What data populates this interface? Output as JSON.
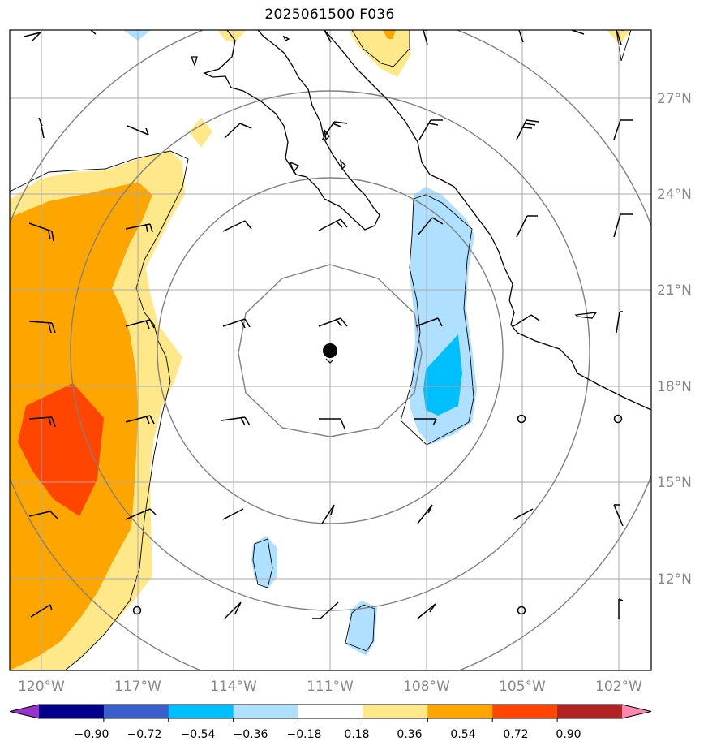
{
  "title": "2025061500 F036",
  "lat_labels": [
    "27°N",
    "24°N",
    "21°N",
    "18°N",
    "15°N",
    "12°N"
  ],
  "lon_labels": [
    "120°W",
    "117°W",
    "114°W",
    "111°W",
    "108°W",
    "105°W",
    "102°W"
  ],
  "colorbar": {
    "ticks": [
      "−0.90",
      "−0.72",
      "−0.54",
      "−0.36",
      "−0.18",
      "0.18",
      "0.36",
      "0.54",
      "0.72",
      "0.90"
    ],
    "colors": [
      "#9932cc",
      "#00008b",
      "#3a5fcd",
      "#00bfff",
      "#b0e0ff",
      "#ffffff",
      "#ffe88a",
      "#ffa500",
      "#ff4500",
      "#b22222",
      "#ff88b0"
    ]
  },
  "colors": {
    "light_yellow": "#ffe88a",
    "orange": "#ffa500",
    "red_orange": "#ff4500",
    "light_blue": "#b0e0ff",
    "deep_sky_blue": "#00bfff",
    "gridline": "#aaaaaa",
    "range_ring": "#808080"
  },
  "storm_center": {
    "lon": -111.0,
    "lat": 19.1
  }
}
